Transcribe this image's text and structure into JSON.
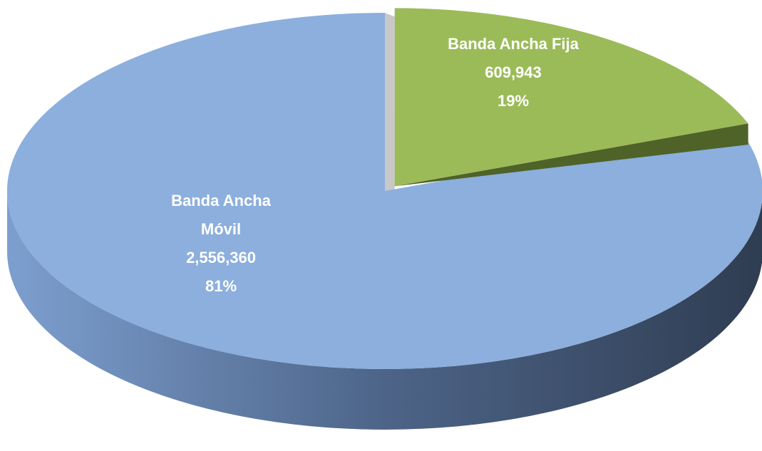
{
  "chart_data": {
    "type": "pie3d",
    "categories": [
      "Banda Ancha Fija",
      "Banda Ancha Móvil"
    ],
    "values": [
      609943,
      2556360
    ],
    "value_labels": [
      "609,943",
      "2,556,360"
    ],
    "percentages": [
      19,
      81
    ],
    "percent_labels": [
      "19%",
      "81%"
    ],
    "colors": [
      "#9bbb59",
      "#8cafdd"
    ]
  }
}
